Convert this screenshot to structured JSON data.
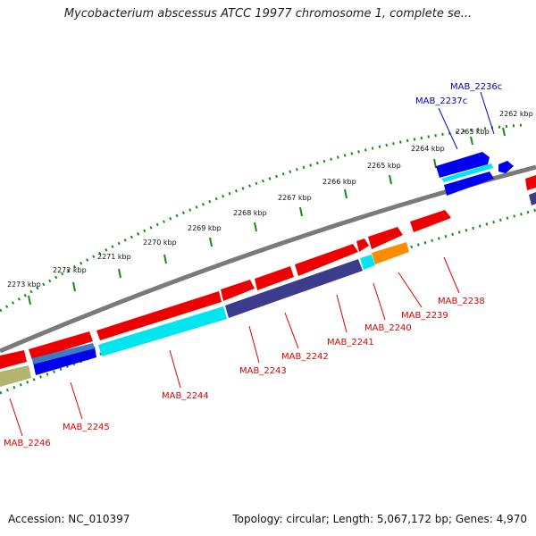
{
  "title": "Mycobacterium abscessus ATCC 19977 chromosome 1, complete se...",
  "accession": "Accession: NC_010397",
  "summary": "Topology: circular; Length: 5,067,172 bp; Genes: 4,970",
  "ruler": [
    "2262 kbp",
    "2263 kbp",
    "2264 kbp",
    "2265 kbp",
    "2266 kbp",
    "2267 kbp",
    "2268 kbp",
    "2269 kbp",
    "2270 kbp",
    "2271 kbp",
    "2272 kbp",
    "2273 kbp"
  ],
  "colors": {
    "red": "#ee0000",
    "cyan": "#00e5ee",
    "blue": "#0000ee",
    "navy": "#3c3c8c",
    "orange": "#ff8c00",
    "olive": "#b4b46e",
    "label_red": "#dd0000",
    "label_blue": "#0000cc",
    "backbone": "#888888",
    "tick": "#1a8a1a"
  },
  "genes": [
    {
      "name": "MAB_2236c",
      "color": "blue"
    },
    {
      "name": "MAB_2237c",
      "color": "blue"
    },
    {
      "name": "MAB_2238",
      "color": "red"
    },
    {
      "name": "MAB_2239",
      "color": "red"
    },
    {
      "name": "MAB_2240",
      "color": "red"
    },
    {
      "name": "MAB_2241",
      "color": "red"
    },
    {
      "name": "MAB_2242",
      "color": "red"
    },
    {
      "name": "MAB_2243",
      "color": "red"
    },
    {
      "name": "MAB_2244",
      "color": "red"
    },
    {
      "name": "MAB_2245",
      "color": "red"
    },
    {
      "name": "MAB_2246",
      "color": "red"
    }
  ]
}
